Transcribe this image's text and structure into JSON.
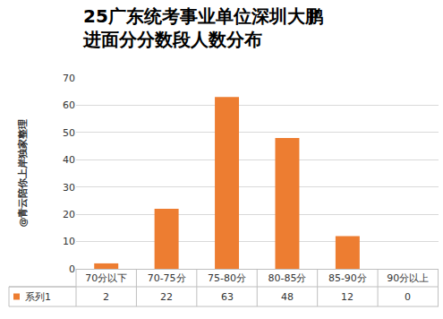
{
  "chart_data": {
    "type": "bar",
    "title": "25广东统考事业单位深圳大鹏\n进面分分数段人数分布",
    "categories": [
      "70分以下",
      "70-75分",
      "75-80分",
      "80-85分",
      "85-90分",
      "90分以上"
    ],
    "series": [
      {
        "name": "系列1",
        "color": "#ed7d31",
        "values": [
          2,
          22,
          63,
          48,
          12,
          0
        ]
      }
    ],
    "ylim": [
      0,
      70
    ],
    "yticks": [
      0,
      10,
      20,
      30,
      40,
      50,
      60,
      70
    ],
    "grid": true,
    "annotations": [
      "@青云陪你上岸独家整理"
    ]
  }
}
